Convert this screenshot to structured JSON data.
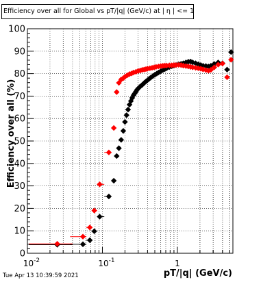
{
  "title": "Efficiency over all for Global vs pT/|q| (GeV/c) at |  η | <= 1.0",
  "timestamp": "Tue Apr 13 10:39:59 2021",
  "colors": {
    "series_black": "#000000",
    "series_red": "#ff0000",
    "grid": "#000000"
  },
  "chart_data": {
    "type": "scatter",
    "title": "Efficiency over all for Global vs pT/|q| (GeV/c) at |  η | <= 1.0",
    "xlabel": "pT/|q| (GeV/c)",
    "ylabel": "Efficiency over all (%)",
    "xscale": "log",
    "xlim": [
      0.01,
      5.5
    ],
    "ylim": [
      0,
      100
    ],
    "grid": true,
    "x_tick_labels": [
      "10^-2",
      "10^-1",
      "1"
    ],
    "y_tick_labels": [
      "0",
      "10",
      "20",
      "30",
      "40",
      "50",
      "60",
      "70",
      "80",
      "90",
      "100"
    ],
    "series": [
      {
        "color": "#000000",
        "points": [
          [
            0.025,
            3.8
          ],
          [
            0.055,
            4.0
          ],
          [
            0.068,
            5.8
          ],
          [
            0.078,
            9.8
          ],
          [
            0.092,
            16.3
          ],
          [
            0.122,
            25.3
          ],
          [
            0.142,
            32.3
          ],
          [
            0.155,
            43.3
          ],
          [
            0.166,
            46.8
          ],
          [
            0.178,
            50.5
          ],
          [
            0.19,
            54.5
          ],
          [
            0.2,
            58.5
          ],
          [
            0.21,
            61.5
          ],
          [
            0.22,
            64.0
          ],
          [
            0.23,
            66.2
          ],
          [
            0.24,
            67.8
          ],
          [
            0.25,
            69.2
          ],
          [
            0.26,
            70.4
          ],
          [
            0.27,
            71.2
          ],
          [
            0.28,
            72.0
          ],
          [
            0.29,
            72.8
          ],
          [
            0.3,
            73.4
          ],
          [
            0.32,
            74.3
          ],
          [
            0.34,
            75.0
          ],
          [
            0.36,
            75.8
          ],
          [
            0.38,
            76.5
          ],
          [
            0.4,
            77.1
          ],
          [
            0.42,
            77.7
          ],
          [
            0.44,
            78.2
          ],
          [
            0.47,
            78.9
          ],
          [
            0.5,
            79.5
          ],
          [
            0.53,
            80.0
          ],
          [
            0.56,
            80.5
          ],
          [
            0.6,
            81.1
          ],
          [
            0.64,
            81.6
          ],
          [
            0.68,
            82.0
          ],
          [
            0.72,
            82.4
          ],
          [
            0.78,
            82.9
          ],
          [
            0.84,
            83.3
          ],
          [
            0.9,
            83.6
          ],
          [
            0.96,
            83.9
          ],
          [
            1.04,
            84.2
          ],
          [
            1.12,
            84.4
          ],
          [
            1.2,
            84.6
          ],
          [
            1.3,
            85.0
          ],
          [
            1.4,
            85.3
          ],
          [
            1.5,
            85.4
          ],
          [
            1.6,
            85.0
          ],
          [
            1.75,
            84.6
          ],
          [
            1.9,
            84.2
          ],
          [
            2.05,
            83.8
          ],
          [
            2.2,
            83.5
          ],
          [
            2.4,
            83.4
          ],
          [
            2.6,
            83.2
          ],
          [
            2.8,
            83.5
          ],
          [
            3.1,
            84.3
          ],
          [
            3.5,
            85.0
          ],
          [
            4.0,
            84.6
          ],
          [
            4.6,
            81.8
          ],
          [
            5.2,
            89.6
          ]
        ]
      },
      {
        "color": "#ff0000",
        "points": [
          [
            0.025,
            4.2
          ],
          [
            0.055,
            7.4
          ],
          [
            0.068,
            11.5
          ],
          [
            0.078,
            19.0
          ],
          [
            0.092,
            30.7
          ],
          [
            0.122,
            44.9
          ],
          [
            0.142,
            55.8
          ],
          [
            0.155,
            71.8
          ],
          [
            0.166,
            75.9
          ],
          [
            0.178,
            77.4
          ],
          [
            0.19,
            78.0
          ],
          [
            0.2,
            78.6
          ],
          [
            0.215,
            79.3
          ],
          [
            0.23,
            79.8
          ],
          [
            0.245,
            80.1
          ],
          [
            0.26,
            80.5
          ],
          [
            0.28,
            80.8
          ],
          [
            0.3,
            81.2
          ],
          [
            0.32,
            81.4
          ],
          [
            0.34,
            81.7
          ],
          [
            0.36,
            81.8
          ],
          [
            0.38,
            82.0
          ],
          [
            0.4,
            82.2
          ],
          [
            0.43,
            82.4
          ],
          [
            0.46,
            82.6
          ],
          [
            0.49,
            82.8
          ],
          [
            0.52,
            83.0
          ],
          [
            0.56,
            83.2
          ],
          [
            0.6,
            83.4
          ],
          [
            0.64,
            83.5
          ],
          [
            0.68,
            83.6
          ],
          [
            0.72,
            83.6
          ],
          [
            0.78,
            83.7
          ],
          [
            0.84,
            83.7
          ],
          [
            0.9,
            83.8
          ],
          [
            0.96,
            83.8
          ],
          [
            1.04,
            83.9
          ],
          [
            1.12,
            83.8
          ],
          [
            1.2,
            83.6
          ],
          [
            1.3,
            83.4
          ],
          [
            1.4,
            83.2
          ],
          [
            1.5,
            83.0
          ],
          [
            1.6,
            82.8
          ],
          [
            1.75,
            82.6
          ],
          [
            1.9,
            82.4
          ],
          [
            2.05,
            82.2
          ],
          [
            2.2,
            81.9
          ],
          [
            2.4,
            81.6
          ],
          [
            2.6,
            81.3
          ],
          [
            2.8,
            81.7
          ],
          [
            3.1,
            82.8
          ],
          [
            3.5,
            84.0
          ],
          [
            4.0,
            84.5
          ],
          [
            4.6,
            78.4
          ],
          [
            5.2,
            86.2
          ]
        ]
      }
    ]
  }
}
